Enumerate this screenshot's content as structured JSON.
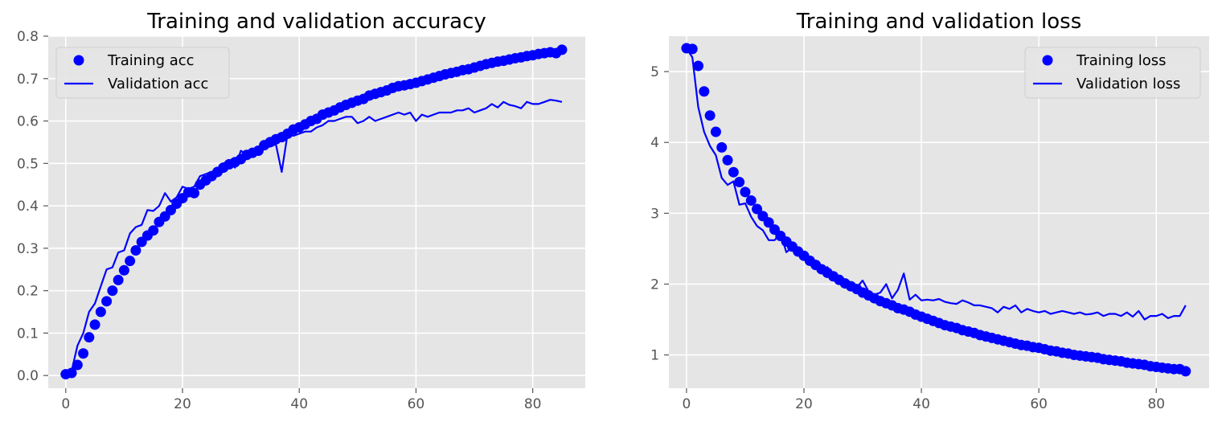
{
  "colors": {
    "plot_bg": "#E5E5E5",
    "grid": "#FFFFFF",
    "series": "#0000FF",
    "tick_text": "#555555",
    "legend_bg": "#E5E5E5",
    "legend_border": "#CCCCCC"
  },
  "chart_data": [
    {
      "type": "scatter+line",
      "title": "Training and validation accuracy",
      "xlabel": "",
      "ylabel": "",
      "xlim": [
        -3,
        89
      ],
      "ylim": [
        -0.03,
        0.8
      ],
      "xticks": [
        0,
        20,
        40,
        60,
        80
      ],
      "xtick_labels": [
        "0",
        "20",
        "40",
        "60",
        "80"
      ],
      "yticks": [
        0.0,
        0.1,
        0.2,
        0.3,
        0.4,
        0.5,
        0.6,
        0.7,
        0.8
      ],
      "ytick_labels": [
        "0.0",
        "0.1",
        "0.2",
        "0.3",
        "0.4",
        "0.5",
        "0.6",
        "0.7",
        "0.8"
      ],
      "grid": true,
      "legend_position": "upper-left",
      "series": [
        {
          "name": "Training acc",
          "style": "markers",
          "x": [
            0,
            1,
            2,
            3,
            4,
            5,
            6,
            7,
            8,
            9,
            10,
            11,
            12,
            13,
            14,
            15,
            16,
            17,
            18,
            19,
            20,
            21,
            22,
            23,
            24,
            25,
            26,
            27,
            28,
            29,
            30,
            31,
            32,
            33,
            34,
            35,
            36,
            37,
            38,
            39,
            40,
            41,
            42,
            43,
            44,
            45,
            46,
            47,
            48,
            49,
            50,
            51,
            52,
            53,
            54,
            55,
            56,
            57,
            58,
            59,
            60,
            61,
            62,
            63,
            64,
            65,
            66,
            67,
            68,
            69,
            70,
            71,
            72,
            73,
            74,
            75,
            76,
            77,
            78,
            79,
            80,
            81,
            82,
            83,
            84,
            85
          ],
          "y": [
            0.003,
            0.006,
            0.025,
            0.052,
            0.09,
            0.12,
            0.15,
            0.175,
            0.2,
            0.225,
            0.248,
            0.27,
            0.295,
            0.315,
            0.33,
            0.342,
            0.362,
            0.375,
            0.39,
            0.405,
            0.418,
            0.432,
            0.43,
            0.45,
            0.46,
            0.47,
            0.48,
            0.49,
            0.498,
            0.503,
            0.51,
            0.52,
            0.525,
            0.53,
            0.543,
            0.55,
            0.557,
            0.562,
            0.57,
            0.58,
            0.585,
            0.592,
            0.6,
            0.605,
            0.615,
            0.62,
            0.625,
            0.632,
            0.638,
            0.643,
            0.648,
            0.652,
            0.66,
            0.664,
            0.668,
            0.672,
            0.678,
            0.682,
            0.684,
            0.687,
            0.69,
            0.694,
            0.698,
            0.702,
            0.706,
            0.71,
            0.713,
            0.716,
            0.72,
            0.722,
            0.726,
            0.73,
            0.734,
            0.737,
            0.74,
            0.742,
            0.745,
            0.748,
            0.75,
            0.753,
            0.755,
            0.758,
            0.76,
            0.762,
            0.76,
            0.768
          ]
        },
        {
          "name": "Validation acc",
          "style": "line",
          "x": [
            0,
            1,
            2,
            3,
            4,
            5,
            6,
            7,
            8,
            9,
            10,
            11,
            12,
            13,
            14,
            15,
            16,
            17,
            18,
            19,
            20,
            21,
            22,
            23,
            24,
            25,
            26,
            27,
            28,
            29,
            30,
            31,
            32,
            33,
            34,
            35,
            36,
            37,
            38,
            39,
            40,
            41,
            42,
            43,
            44,
            45,
            46,
            47,
            48,
            49,
            50,
            51,
            52,
            53,
            54,
            55,
            56,
            57,
            58,
            59,
            60,
            61,
            62,
            63,
            64,
            65,
            66,
            67,
            68,
            69,
            70,
            71,
            72,
            73,
            74,
            75,
            76,
            77,
            78,
            79,
            80,
            81,
            82,
            83,
            84,
            85
          ],
          "y": [
            0.005,
            0.01,
            0.07,
            0.1,
            0.15,
            0.17,
            0.21,
            0.25,
            0.255,
            0.29,
            0.295,
            0.335,
            0.35,
            0.355,
            0.39,
            0.388,
            0.4,
            0.43,
            0.41,
            0.42,
            0.445,
            0.44,
            0.445,
            0.47,
            0.475,
            0.48,
            0.48,
            0.5,
            0.505,
            0.49,
            0.53,
            0.52,
            0.53,
            0.52,
            0.535,
            0.54,
            0.545,
            0.48,
            0.57,
            0.565,
            0.57,
            0.575,
            0.575,
            0.585,
            0.59,
            0.6,
            0.6,
            0.605,
            0.61,
            0.61,
            0.595,
            0.6,
            0.61,
            0.6,
            0.605,
            0.61,
            0.615,
            0.62,
            0.615,
            0.62,
            0.6,
            0.615,
            0.61,
            0.615,
            0.62,
            0.62,
            0.62,
            0.625,
            0.625,
            0.63,
            0.62,
            0.625,
            0.63,
            0.64,
            0.632,
            0.645,
            0.638,
            0.635,
            0.63,
            0.645,
            0.64,
            0.64,
            0.645,
            0.65,
            0.648,
            0.645
          ]
        }
      ]
    },
    {
      "type": "scatter+line",
      "title": "Training and validation loss",
      "xlabel": "",
      "ylabel": "",
      "xlim": [
        -3,
        89
      ],
      "ylim": [
        0.53,
        5.5
      ],
      "xticks": [
        0,
        20,
        40,
        60,
        80
      ],
      "xtick_labels": [
        "0",
        "20",
        "40",
        "60",
        "80"
      ],
      "yticks": [
        1,
        2,
        3,
        4,
        5
      ],
      "ytick_labels": [
        "1",
        "2",
        "3",
        "4",
        "5"
      ],
      "grid": true,
      "legend_position": "upper-right",
      "series": [
        {
          "name": "Training loss",
          "style": "markers",
          "x": [
            0,
            1,
            2,
            3,
            4,
            5,
            6,
            7,
            8,
            9,
            10,
            11,
            12,
            13,
            14,
            15,
            16,
            17,
            18,
            19,
            20,
            21,
            22,
            23,
            24,
            25,
            26,
            27,
            28,
            29,
            30,
            31,
            32,
            33,
            34,
            35,
            36,
            37,
            38,
            39,
            40,
            41,
            42,
            43,
            44,
            45,
            46,
            47,
            48,
            49,
            50,
            51,
            52,
            53,
            54,
            55,
            56,
            57,
            58,
            59,
            60,
            61,
            62,
            63,
            64,
            65,
            66,
            67,
            68,
            69,
            70,
            71,
            72,
            73,
            74,
            75,
            76,
            77,
            78,
            79,
            80,
            81,
            82,
            83,
            84,
            85
          ],
          "y": [
            5.33,
            5.32,
            5.08,
            4.72,
            4.38,
            4.15,
            3.93,
            3.75,
            3.58,
            3.44,
            3.3,
            3.18,
            3.06,
            2.96,
            2.87,
            2.77,
            2.68,
            2.6,
            2.53,
            2.46,
            2.4,
            2.33,
            2.27,
            2.21,
            2.16,
            2.11,
            2.06,
            2.01,
            1.97,
            1.93,
            1.88,
            1.84,
            1.8,
            1.76,
            1.73,
            1.7,
            1.66,
            1.64,
            1.61,
            1.57,
            1.54,
            1.51,
            1.48,
            1.45,
            1.42,
            1.4,
            1.38,
            1.35,
            1.33,
            1.31,
            1.28,
            1.26,
            1.24,
            1.22,
            1.2,
            1.18,
            1.16,
            1.14,
            1.13,
            1.11,
            1.1,
            1.08,
            1.06,
            1.05,
            1.03,
            1.02,
            1.0,
            0.99,
            0.98,
            0.97,
            0.96,
            0.94,
            0.93,
            0.92,
            0.91,
            0.89,
            0.88,
            0.87,
            0.86,
            0.84,
            0.83,
            0.82,
            0.81,
            0.8,
            0.8,
            0.77
          ]
        },
        {
          "name": "Validation loss",
          "style": "line",
          "x": [
            0,
            1,
            2,
            3,
            4,
            5,
            6,
            7,
            8,
            9,
            10,
            11,
            12,
            13,
            14,
            15,
            16,
            17,
            18,
            19,
            20,
            21,
            22,
            23,
            24,
            25,
            26,
            27,
            28,
            29,
            30,
            31,
            32,
            33,
            34,
            35,
            36,
            37,
            38,
            39,
            40,
            41,
            42,
            43,
            44,
            45,
            46,
            47,
            48,
            49,
            50,
            51,
            52,
            53,
            54,
            55,
            56,
            57,
            58,
            59,
            60,
            61,
            62,
            63,
            64,
            65,
            66,
            67,
            68,
            69,
            70,
            71,
            72,
            73,
            74,
            75,
            76,
            77,
            78,
            79,
            80,
            81,
            82,
            83,
            84,
            85
          ],
          "y": [
            5.33,
            5.2,
            4.5,
            4.15,
            3.95,
            3.82,
            3.5,
            3.4,
            3.45,
            3.12,
            3.14,
            2.95,
            2.82,
            2.76,
            2.62,
            2.62,
            2.72,
            2.45,
            2.52,
            2.45,
            2.4,
            2.35,
            2.3,
            2.18,
            2.24,
            2.1,
            2.05,
            2.03,
            2.01,
            1.95,
            2.05,
            1.9,
            1.85,
            1.88,
            2.0,
            1.8,
            1.92,
            2.15,
            1.78,
            1.85,
            1.77,
            1.78,
            1.77,
            1.79,
            1.75,
            1.73,
            1.72,
            1.77,
            1.74,
            1.7,
            1.7,
            1.68,
            1.66,
            1.6,
            1.68,
            1.65,
            1.7,
            1.6,
            1.65,
            1.62,
            1.6,
            1.62,
            1.58,
            1.6,
            1.62,
            1.6,
            1.58,
            1.6,
            1.57,
            1.58,
            1.6,
            1.55,
            1.58,
            1.58,
            1.55,
            1.6,
            1.54,
            1.62,
            1.5,
            1.55,
            1.55,
            1.58,
            1.52,
            1.55,
            1.55,
            1.7
          ]
        }
      ]
    }
  ]
}
